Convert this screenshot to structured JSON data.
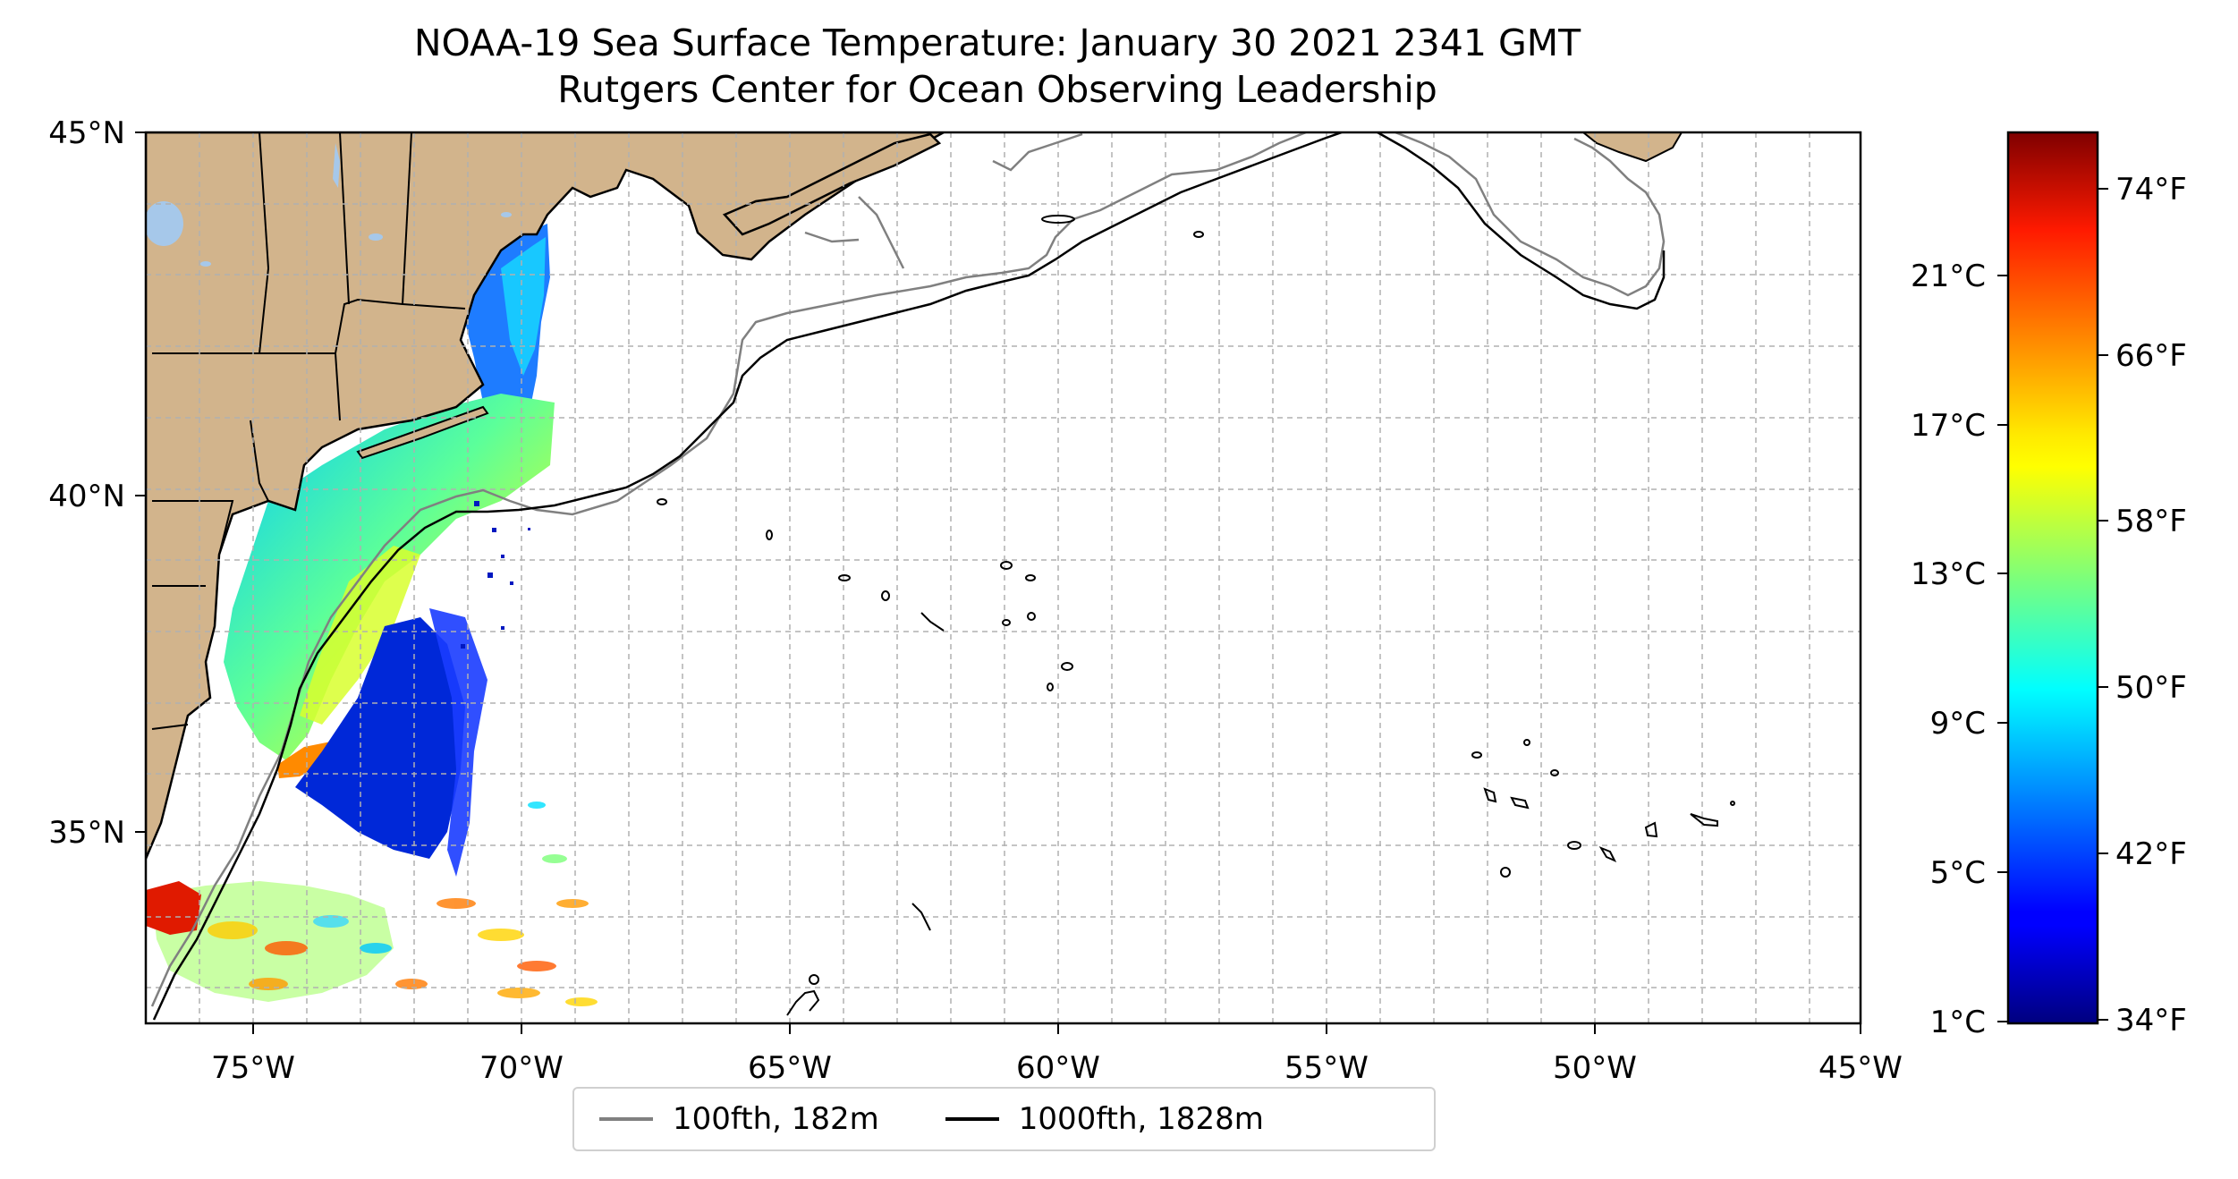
{
  "title": {
    "line1": "NOAA-19 Sea Surface Temperature: January 30 2021 2341 GMT",
    "line2": "Rutgers Center for Ocean Observing Leadership"
  },
  "map": {
    "projection": "PlateCarree",
    "extent": {
      "lon_min": -77,
      "lon_max": -45,
      "lat_min": 32.5,
      "lat_max": 45
    },
    "lon_ticks": [
      {
        "value": -75,
        "label": "75°W"
      },
      {
        "value": -70,
        "label": "70°W"
      },
      {
        "value": -65,
        "label": "65°W"
      },
      {
        "value": -60,
        "label": "60°W"
      },
      {
        "value": -55,
        "label": "55°W"
      },
      {
        "value": -50,
        "label": "50°W"
      },
      {
        "value": -45,
        "label": "45°W"
      }
    ],
    "lat_ticks": [
      {
        "value": 45,
        "label": "45°N"
      },
      {
        "value": 40,
        "label": "40°N"
      },
      {
        "value": 35,
        "label": "35°N"
      }
    ],
    "gridlines": true,
    "land_color": "#d2b48c",
    "lake_color": "#a6c8ea",
    "legend": [
      {
        "label": "100fth, 182m",
        "color": "#808080"
      },
      {
        "label": "1000fth, 1828m",
        "color": "#000000"
      }
    ],
    "legend_placement": "bottom-center"
  },
  "colorbar": {
    "colormap": "jet",
    "range_celsius": [
      1,
      25
    ],
    "celsius_ticks": [
      {
        "value": 1,
        "label": "1°C"
      },
      {
        "value": 5,
        "label": "5°C"
      },
      {
        "value": 9,
        "label": "9°C"
      },
      {
        "value": 13,
        "label": "13°C"
      },
      {
        "value": 17,
        "label": "17°C"
      },
      {
        "value": 21,
        "label": "21°C"
      }
    ],
    "fahrenheit_ticks": [
      {
        "value": 34,
        "label": "34°F"
      },
      {
        "value": 42,
        "label": "42°F"
      },
      {
        "value": 50,
        "label": "50°F"
      },
      {
        "value": 58,
        "label": "58°F"
      },
      {
        "value": 66,
        "label": "66°F"
      },
      {
        "value": 74,
        "label": "74°F"
      }
    ]
  }
}
